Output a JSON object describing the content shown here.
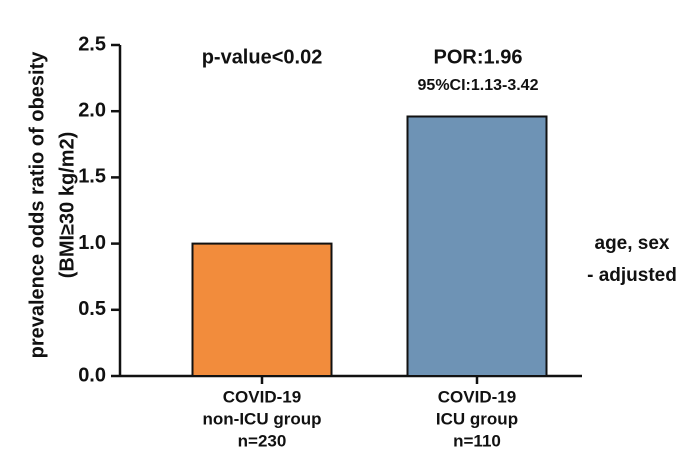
{
  "chart_data": {
    "type": "bar",
    "y_label": [
      "prevalence odds ratio of obesity",
      "(BMI≥30 kg/m2)"
    ],
    "categories": [
      [
        "COVID-19",
        "non-ICU group",
        "n=230"
      ],
      [
        "COVID-19",
        "ICU group",
        "n=110"
      ]
    ],
    "values": [
      1.0,
      1.96
    ],
    "colors": [
      "#f28c3c",
      "#6e93b5"
    ],
    "ylim": [
      0,
      2.5
    ],
    "yticks": [
      {
        "value": 0,
        "label": "0.0"
      },
      0.5,
      {
        "value": 1,
        "label": "1.0"
      },
      1.5,
      {
        "value": 2,
        "label": "2.0"
      },
      2.5
    ],
    "annotations": {
      "p_value": "p-value<0.02",
      "por": "POR:1.96",
      "ci": "95%CI:1.13-3.42",
      "adjust": [
        "age, sex",
        "- adjusted"
      ]
    }
  }
}
